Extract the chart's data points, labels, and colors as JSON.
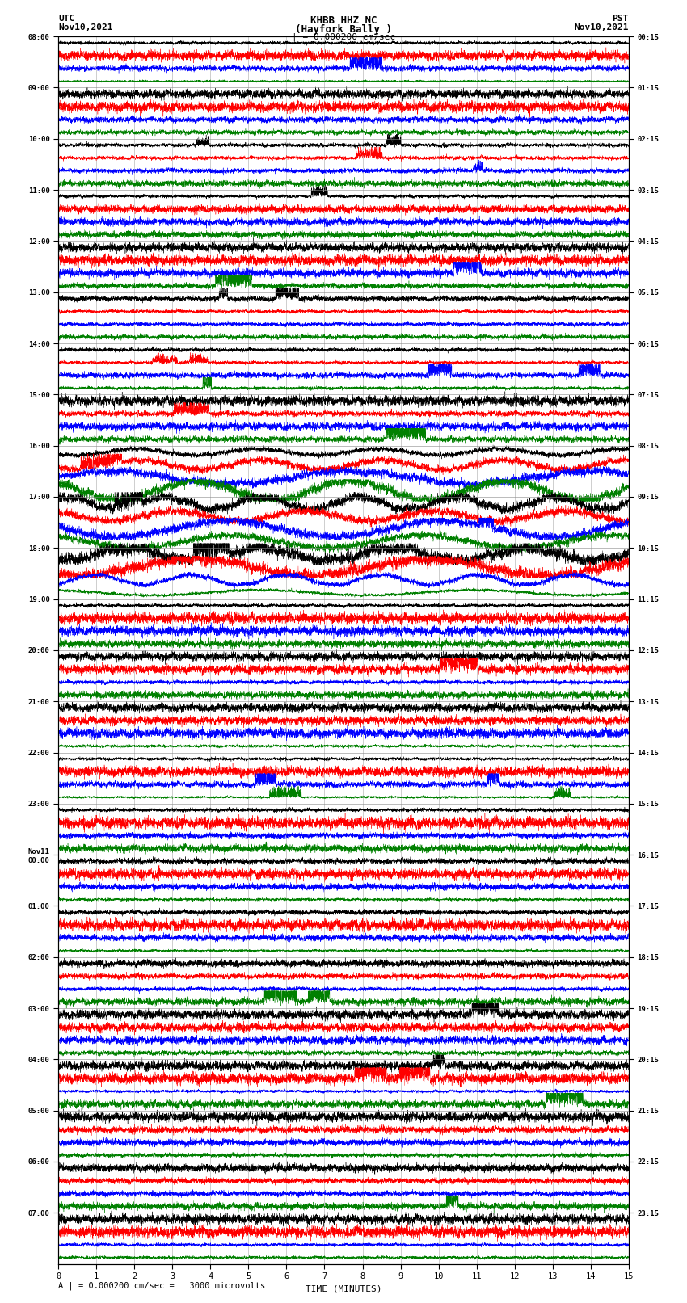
{
  "title_line1": "KHBB HHZ NC",
  "title_line2": "(Hayfork Bally )",
  "scale_label": "| = 0.000200 cm/sec",
  "scale_note": "A | = 0.000200 cm/sec =   3000 microvolts",
  "utc_label1": "UTC",
  "utc_label2": "Nov10,2021",
  "pst_label1": "PST",
  "pst_label2": "Nov10,2021",
  "xlabel": "TIME (MINUTES)",
  "time_minutes": 15,
  "colors": [
    "black",
    "red",
    "blue",
    "green"
  ],
  "bg_color": "#ffffff",
  "left_times": [
    "08:00",
    "09:00",
    "10:00",
    "11:00",
    "12:00",
    "13:00",
    "14:00",
    "15:00",
    "16:00",
    "17:00",
    "18:00",
    "19:00",
    "20:00",
    "21:00",
    "22:00",
    "23:00",
    "Nov11\n00:00",
    "01:00",
    "02:00",
    "03:00",
    "04:00",
    "05:00",
    "06:00",
    "07:00"
  ],
  "right_times": [
    "00:15",
    "01:15",
    "02:15",
    "03:15",
    "04:15",
    "05:15",
    "06:15",
    "07:15",
    "08:15",
    "09:15",
    "10:15",
    "11:15",
    "12:15",
    "13:15",
    "14:15",
    "15:15",
    "16:15",
    "17:15",
    "18:15",
    "19:15",
    "20:15",
    "21:15",
    "22:15",
    "23:15"
  ],
  "n_hour_groups": 24,
  "traces_per_group": 4,
  "seed": 12345
}
